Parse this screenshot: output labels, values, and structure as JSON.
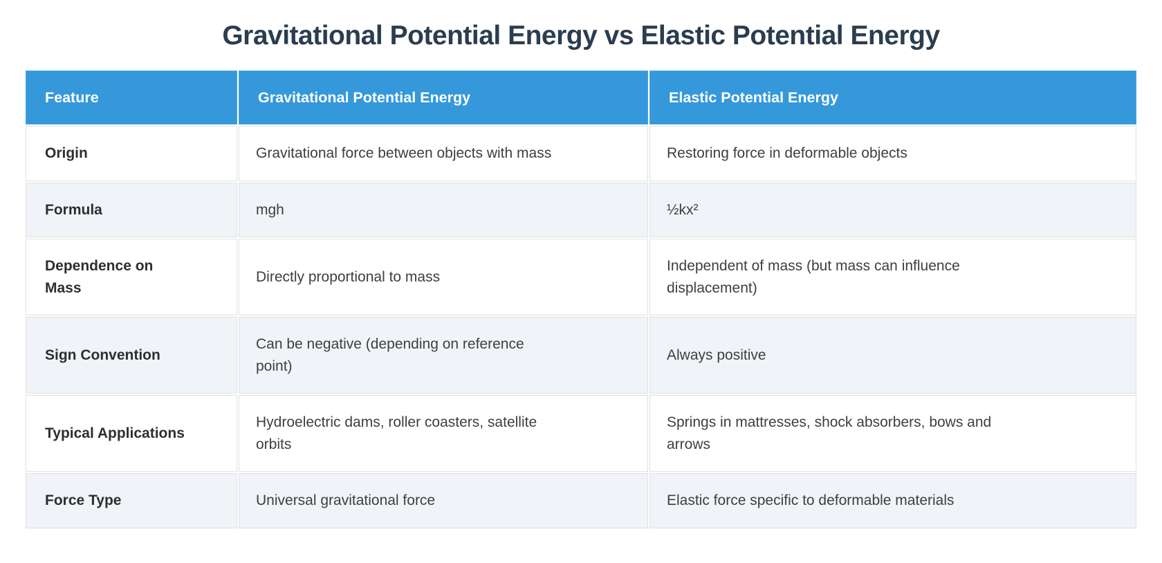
{
  "page_title": "Gravitational Potential Energy vs Elastic Potential Energy",
  "theme": {
    "header_bg": "#3598DB",
    "header_border": "#4BA4DE",
    "header_text": "#FFFFFF",
    "title_color": "#2B3D4F",
    "row_bg": "#FFFFFF",
    "row_alt_bg": "#F0F4F8",
    "cell_border": "#E0E0E0",
    "cell_text": "#3E3E3E",
    "feature_text": "#2E2E2E"
  },
  "table": {
    "columns": [
      {
        "label": "Feature"
      },
      {
        "label": "Gravitational Potential Energy"
      },
      {
        "label": "Elastic Potential Energy"
      }
    ],
    "rows": [
      {
        "feature": "Origin",
        "gravitational": "Gravitational force between objects with mass",
        "elastic": "Restoring force in deformable objects"
      },
      {
        "feature": "Formula",
        "gravitational": "mgh",
        "elastic": "½kx²"
      },
      {
        "feature": "Dependence on Mass",
        "gravitational": "Directly proportional to mass",
        "elastic": "Independent of mass (but mass can influence displacement)"
      },
      {
        "feature": "Sign Convention",
        "gravitational": "Can be negative (depending on reference point)",
        "elastic": "Always positive"
      },
      {
        "feature": "Typical Applications",
        "gravitational": "Hydroelectric dams, roller coasters, satellite orbits",
        "elastic": "Springs in mattresses, shock absorbers, bows and arrows"
      },
      {
        "feature": "Force Type",
        "gravitational": "Universal gravitational force",
        "elastic": "Elastic force specific to deformable materials"
      }
    ]
  }
}
